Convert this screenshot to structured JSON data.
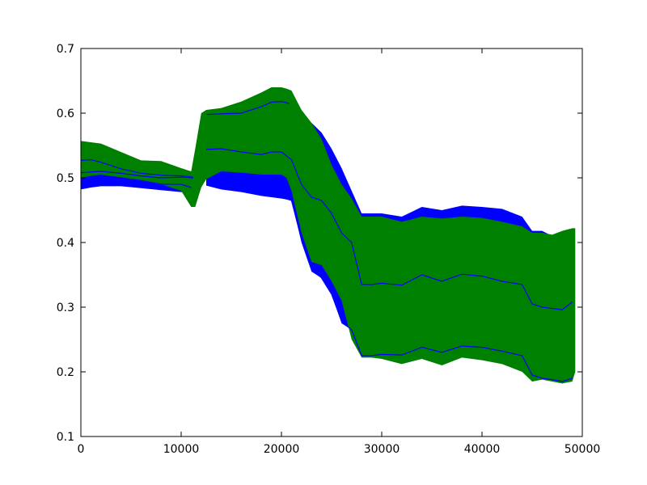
{
  "chart_data": {
    "type": "area",
    "title": "",
    "xlabel": "",
    "ylabel": "",
    "xlim": [
      0,
      50000
    ],
    "ylim": [
      0.1,
      0.7
    ],
    "grid": false,
    "x_ticks": [
      0,
      10000,
      20000,
      30000,
      40000,
      50000
    ],
    "y_ticks": [
      0.1,
      0.2,
      0.3,
      0.4,
      0.5,
      0.6,
      0.7
    ],
    "x_tick_labels": [
      "0",
      "10000",
      "20000",
      "30000",
      "40000",
      "50000"
    ],
    "y_tick_labels": [
      "0.1",
      "0.2",
      "0.3",
      "0.4",
      "0.5",
      "0.6",
      "0.7"
    ],
    "bands": [
      {
        "color": "#0000ff",
        "segments": [
          {
            "x": [
              0,
              1000,
              2000,
              4000,
              6000,
              8000,
              10000,
              11200
            ],
            "upper": [
              0.526,
              0.528,
              0.525,
              0.515,
              0.508,
              0.505,
              0.503,
              0.5
            ],
            "lower": [
              0.482,
              0.485,
              0.487,
              0.487,
              0.484,
              0.481,
              0.478,
              0.476
            ]
          },
          {
            "x": [
              12500,
              14000,
              16000,
              18000,
              19000,
              20000,
              21000,
              22000,
              23000,
              24000,
              25000,
              26000,
              27000,
              28000,
              29000,
              30000,
              32000,
              34000,
              36000,
              38000,
              40000,
              42000,
              44000,
              45000,
              46000,
              47000,
              48000,
              49000
            ],
            "upper": [
              0.598,
              0.6,
              0.602,
              0.61,
              0.618,
              0.62,
              0.616,
              0.598,
              0.585,
              0.57,
              0.545,
              0.515,
              0.48,
              0.445,
              0.445,
              0.445,
              0.44,
              0.455,
              0.45,
              0.457,
              0.455,
              0.452,
              0.44,
              0.418,
              0.418,
              0.41,
              0.412,
              0.422
            ],
            "lower": [
              0.488,
              0.482,
              0.478,
              0.472,
              0.47,
              0.468,
              0.465,
              0.4,
              0.355,
              0.345,
              0.32,
              0.275,
              0.265,
              0.23,
              0.222,
              0.225,
              0.225,
              0.24,
              0.23,
              0.24,
              0.238,
              0.232,
              0.228,
              0.2,
              0.19,
              0.188,
              0.182,
              0.19
            ]
          }
        ]
      },
      {
        "color": "#008000",
        "segments": [
          {
            "x": [
              0,
              1000,
              2000,
              4000,
              6000,
              8000,
              10000,
              11000,
              11400,
              12000,
              12500,
              14000,
              16000,
              18000,
              19000,
              20000,
              20500,
              21000,
              22000,
              23000,
              24000,
              25000,
              26000,
              27000,
              28000,
              29000,
              30000,
              32000,
              34000,
              36000,
              38000,
              40000,
              42000,
              44000,
              45000,
              46000,
              47000,
              48000,
              49000,
              49300
            ],
            "upper": [
              0.557,
              0.555,
              0.553,
              0.54,
              0.527,
              0.526,
              0.515,
              0.51,
              0.545,
              0.6,
              0.605,
              0.608,
              0.618,
              0.632,
              0.64,
              0.64,
              0.638,
              0.635,
              0.605,
              0.585,
              0.56,
              0.52,
              0.49,
              0.468,
              0.44,
              0.44,
              0.44,
              0.432,
              0.44,
              0.437,
              0.44,
              0.438,
              0.432,
              0.425,
              0.415,
              0.415,
              0.412,
              0.418,
              0.422,
              0.422
            ],
            "lower": [
              0.5,
              0.503,
              0.505,
              0.5,
              0.495,
              0.49,
              0.48,
              0.455,
              0.455,
              0.485,
              0.498,
              0.51,
              0.508,
              0.505,
              0.505,
              0.505,
              0.5,
              0.48,
              0.415,
              0.37,
              0.365,
              0.34,
              0.31,
              0.25,
              0.222,
              0.222,
              0.22,
              0.212,
              0.22,
              0.21,
              0.222,
              0.218,
              0.212,
              0.2,
              0.185,
              0.188,
              0.185,
              0.182,
              0.185,
              0.2
            ]
          }
        ]
      }
    ],
    "series": [
      {
        "color": "#0000ff",
        "x": [
          0,
          1000,
          2000,
          4000,
          6000,
          8000,
          10000,
          11200
        ],
        "y": [
          0.527,
          0.528,
          0.524,
          0.514,
          0.507,
          0.504,
          0.503,
          0.501
        ]
      },
      {
        "color": "#0000ff",
        "x": [
          0,
          2000,
          4000,
          6000,
          8000,
          10000,
          11200
        ],
        "y": [
          0.508,
          0.51,
          0.507,
          0.503,
          0.5,
          0.501,
          0.5
        ]
      },
      {
        "color": "#0000ff",
        "x": [
          3000,
          4000,
          6000,
          8000,
          10000,
          11000
        ],
        "y": [
          0.502,
          0.5,
          0.496,
          0.49,
          0.49,
          0.485
        ]
      },
      {
        "color": "#0000ff",
        "x": [
          12500,
          14000,
          16000,
          18000,
          19000,
          20000,
          20800
        ],
        "y": [
          0.598,
          0.599,
          0.6,
          0.61,
          0.617,
          0.618,
          0.615
        ]
      },
      {
        "color": "#0000ff",
        "x": [
          12500,
          14000,
          16000,
          18000,
          19000,
          20000,
          21000,
          22000,
          23000,
          24000,
          25000,
          26000,
          27000,
          28000,
          29000,
          30000,
          32000,
          34000,
          36000,
          38000,
          40000,
          42000,
          44000,
          45000,
          46000,
          47000,
          48000,
          49000
        ],
        "y": [
          0.544,
          0.545,
          0.54,
          0.536,
          0.54,
          0.54,
          0.528,
          0.49,
          0.47,
          0.465,
          0.445,
          0.415,
          0.4,
          0.335,
          0.335,
          0.337,
          0.334,
          0.35,
          0.34,
          0.351,
          0.348,
          0.34,
          0.335,
          0.305,
          0.3,
          0.298,
          0.296,
          0.308
        ]
      },
      {
        "color": "#0000ff",
        "x": [
          19000,
          20000,
          21000,
          22000,
          23000,
          24000,
          25000,
          26000,
          27000,
          28000,
          29000,
          30000,
          32000,
          34000,
          36000,
          38000,
          40000,
          42000,
          44000,
          45000,
          46000,
          47000,
          48000,
          49000
        ],
        "y": [
          0.48,
          0.47,
          0.465,
          0.405,
          0.36,
          0.345,
          0.32,
          0.278,
          0.265,
          0.225,
          0.225,
          0.227,
          0.226,
          0.238,
          0.23,
          0.24,
          0.238,
          0.232,
          0.225,
          0.195,
          0.19,
          0.188,
          0.185,
          0.19
        ]
      }
    ]
  }
}
